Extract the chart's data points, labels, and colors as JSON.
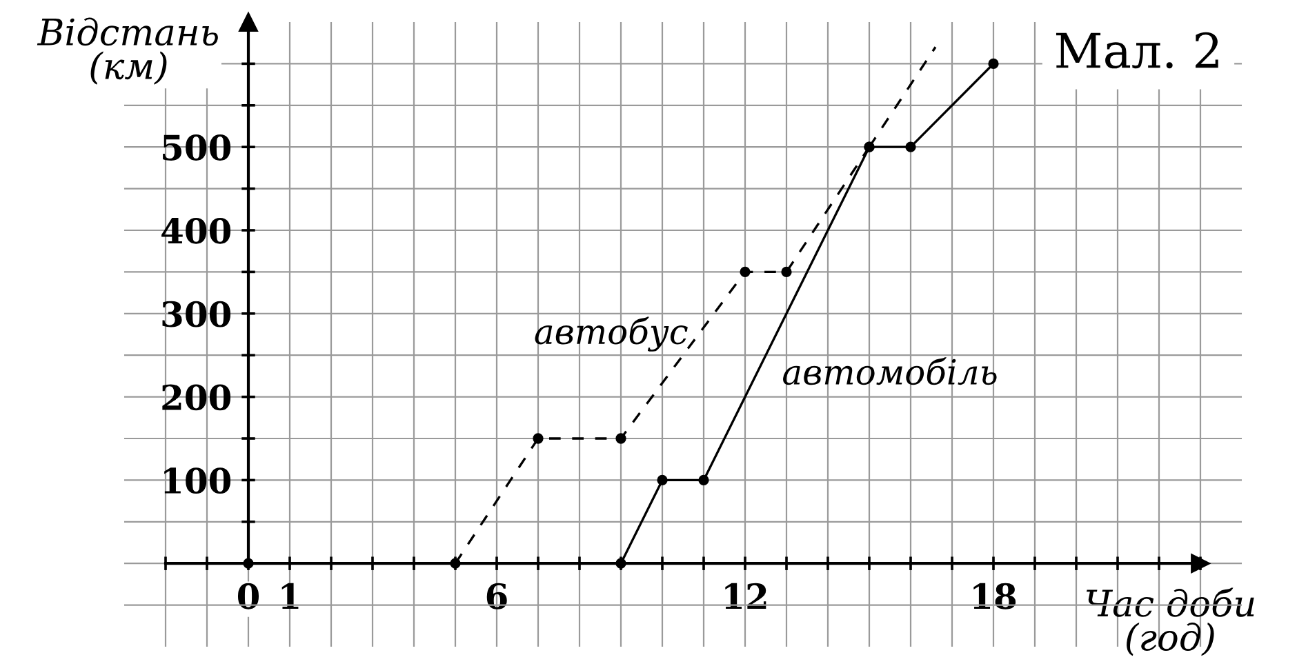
{
  "chart_data": {
    "type": "line",
    "title": "Мал. 2",
    "xlabel": "Час доби\n(год)",
    "ylabel": "Відстань\n(км)",
    "xlim": [
      -3,
      24
    ],
    "ylim": [
      -100,
      650
    ],
    "xticks": [
      {
        "value": -2,
        "label": null
      },
      {
        "value": -1,
        "label": null
      },
      0,
      1,
      {
        "value": 2,
        "label": null
      },
      {
        "value": 3,
        "label": null
      },
      {
        "value": 4,
        "label": null
      },
      {
        "value": 5,
        "label": null
      },
      6,
      {
        "value": 7,
        "label": null
      },
      {
        "value": 8,
        "label": null
      },
      {
        "value": 9,
        "label": null
      },
      {
        "value": 10,
        "label": null
      },
      {
        "value": 11,
        "label": null
      },
      12,
      {
        "value": 13,
        "label": null
      },
      {
        "value": 14,
        "label": null
      },
      {
        "value": 15,
        "label": null
      },
      {
        "value": 16,
        "label": null
      },
      {
        "value": 17,
        "label": null
      },
      18,
      {
        "value": 19,
        "label": null
      },
      {
        "value": 20,
        "label": null
      },
      {
        "value": 21,
        "label": null
      },
      {
        "value": 22,
        "label": null
      },
      {
        "value": 23,
        "label": null
      }
    ],
    "yticks": [
      {
        "value": -50,
        "label": null
      },
      {
        "value": 0,
        "label": null
      },
      {
        "value": 50,
        "label": null
      },
      100,
      {
        "value": 150,
        "label": null
      },
      200,
      {
        "value": 250,
        "label": null
      },
      300,
      {
        "value": 350,
        "label": null
      },
      400,
      {
        "value": 450,
        "label": null
      },
      500,
      {
        "value": 550,
        "label": null
      },
      {
        "value": 600,
        "label": null
      }
    ],
    "grid": true,
    "legend": false,
    "series": [
      {
        "name": "автобус",
        "color": "#000000",
        "line_style": "dashed",
        "marker": "circle",
        "x": [
          5,
          7,
          9,
          12,
          13,
          15
        ],
        "values": [
          0,
          150,
          150,
          350,
          350,
          500
        ]
      },
      {
        "color": "#000000",
        "line_style": "dashed",
        "x": [
          15,
          16.6
        ],
        "values": [
          500,
          620
        ]
      },
      {
        "name": "автомобіль",
        "color": "#000000",
        "line_style": "solid",
        "marker": "circle",
        "x": [
          9,
          10,
          11,
          15,
          16,
          18
        ],
        "values": [
          0,
          100,
          100,
          500,
          500,
          600
        ]
      },
      {
        "type": "scatter",
        "color": "#000000",
        "marker": "circle",
        "x": [
          0
        ],
        "values": [
          0
        ]
      }
    ]
  }
}
